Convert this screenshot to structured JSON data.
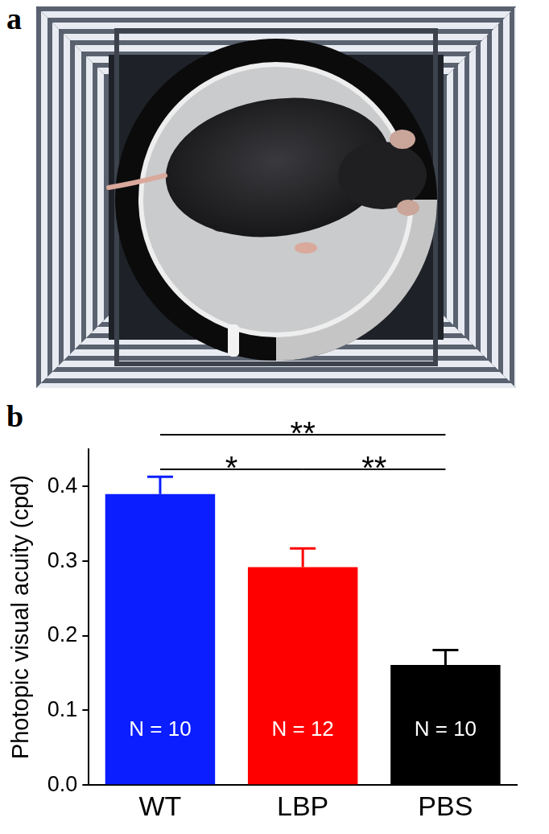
{
  "panels": [
    "a",
    "b"
  ],
  "chart_data": {
    "type": "bar",
    "y_label": "Photopic visual acuity (cpd)",
    "categories": [
      "WT",
      "LBP",
      "PBS"
    ],
    "values": [
      0.39,
      0.292,
      0.161
    ],
    "errors": [
      0.023,
      0.025,
      0.02
    ],
    "colors": [
      "#0a1eff",
      "#ff0000",
      "#000000"
    ],
    "ylim": [
      0,
      0.45
    ],
    "yticks": [
      {
        "value": 0,
        "label": "0.0"
      },
      {
        "value": 0.1,
        "label": "0.1"
      },
      {
        "value": 0.2,
        "label": "0.2"
      },
      {
        "value": 0.3,
        "label": "0.3"
      },
      {
        "value": 0.4,
        "label": "0.4"
      }
    ],
    "grid": false,
    "annotations": {
      "inside_bars": [
        "N = 10",
        "N = 12",
        "N = 10"
      ],
      "significance": [
        {
          "from": "WT",
          "to": "LBP",
          "label": "*"
        },
        {
          "from": "LBP",
          "to": "PBS",
          "label": "**"
        },
        {
          "from": "WT",
          "to": "PBS",
          "label": "**"
        }
      ]
    }
  }
}
